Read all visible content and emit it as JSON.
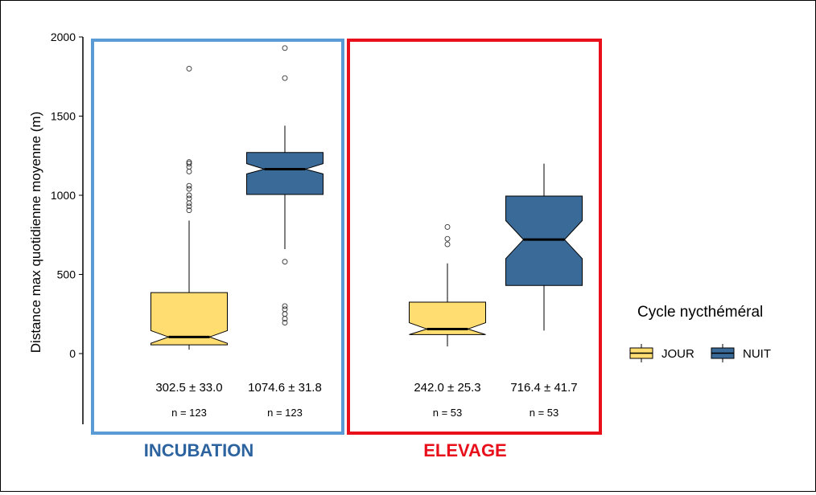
{
  "chart_data": {
    "type": "boxplot",
    "ylabel": "Distance max quotidienne moyenne (m)",
    "xlabel": "",
    "ylim": [
      -450,
      2000
    ],
    "yticks": [
      0,
      500,
      1000,
      1500,
      2000
    ],
    "grid": false,
    "legend": {
      "title": "Cycle nycthéméral",
      "placement": "right",
      "entries": [
        {
          "name": "JOUR",
          "color": "#FFDD71"
        },
        {
          "name": "NUIT",
          "color": "#3A6A98"
        }
      ]
    },
    "groups": [
      {
        "label": "INCUBATION",
        "label_color": "#2D64A0",
        "frame_color": "#5B9BD5",
        "boxes": [
          {
            "series": "JOUR",
            "q1": 55,
            "median": 105,
            "q3": 385,
            "notch_low": 65,
            "notch_high": 145,
            "whisker_low": 25,
            "whisker_high": 840,
            "outliers": [
              905,
              930,
              950,
              980,
              1000,
              1040,
              1060,
              1150,
              1180,
              1200,
              1210,
              1800
            ],
            "mean_label": "302.5 ± 33.0",
            "n_label": "n = 123"
          },
          {
            "series": "NUIT",
            "q1": 1005,
            "median": 1165,
            "q3": 1270,
            "notch_low": 1135,
            "notch_high": 1200,
            "whisker_low": 660,
            "whisker_high": 1440,
            "outliers": [
              195,
              220,
              250,
              280,
              300,
              580,
              1740,
              1930
            ],
            "mean_label": "1074.6 ± 31.8",
            "n_label": "n = 123"
          }
        ]
      },
      {
        "label": "ELEVAGE",
        "label_color": "#E8101A",
        "frame_color": "#E8101A",
        "boxes": [
          {
            "series": "JOUR",
            "q1": 120,
            "median": 155,
            "q3": 325,
            "notch_low": 120,
            "notch_high": 195,
            "whisker_low": 45,
            "whisker_high": 570,
            "outliers": [
              690,
              725,
              800
            ],
            "mean_label": "242.0 ± 25.3",
            "n_label": "n = 53"
          },
          {
            "series": "NUIT",
            "q1": 430,
            "median": 720,
            "q3": 995,
            "notch_low": 600,
            "notch_high": 840,
            "whisker_low": 145,
            "whisker_high": 1200,
            "outliers": [],
            "mean_label": "716.4 ± 41.7",
            "n_label": "n = 53"
          }
        ]
      }
    ]
  }
}
